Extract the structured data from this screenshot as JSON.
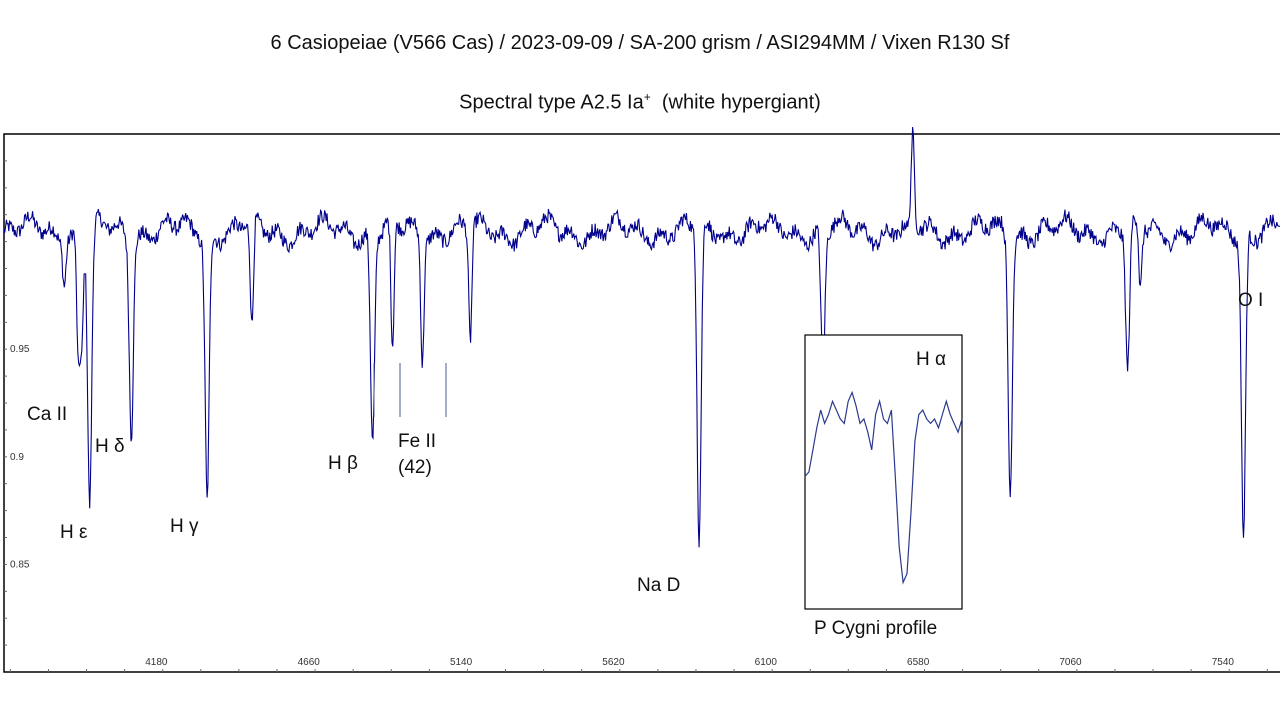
{
  "header": {
    "title": "6 Casiopeiae (V566 Cas) / 2023-09-09 / SA-200 grism / ASI294MM / Vixen R130 Sf",
    "subtitle_main": "Spectral type A2.5 Ia",
    "subtitle_sup": "+",
    "subtitle_tail": "  (white hypergiant)"
  },
  "colors": {
    "spectrum": "#00008b",
    "frame": "#000000",
    "ticks": "#666666"
  },
  "chart_data": {
    "type": "line",
    "xlabel": "",
    "ylabel": "",
    "xlim": [
      3700,
      7720
    ],
    "ylim": [
      0.8,
      1.05
    ],
    "x_ticks": [
      4180,
      4660,
      5140,
      5620,
      6100,
      6580,
      7060,
      7540
    ],
    "y_ticks": [
      0.85,
      0.9,
      0.95
    ],
    "y_tick_labels": [
      "0.85",
      "0.9",
      "0.95"
    ],
    "continuum": 1.005,
    "features": [
      {
        "x": 3890,
        "y": 0.986
      },
      {
        "x": 3934,
        "y": 0.946
      },
      {
        "x": 3945,
        "y": 0.955
      },
      {
        "x": 3970,
        "y": 0.877
      },
      {
        "x": 4101,
        "y": 0.915
      },
      {
        "x": 4340,
        "y": 0.881
      },
      {
        "x": 4481,
        "y": 0.955
      },
      {
        "x": 4861,
        "y": 0.908
      },
      {
        "x": 4924,
        "y": 0.945
      },
      {
        "x": 5018,
        "y": 0.947
      },
      {
        "x": 5169,
        "y": 0.953
      },
      {
        "x": 5890,
        "y": 0.858
      },
      {
        "x": 6280,
        "y": 0.94
      },
      {
        "x": 6548,
        "y": 1.0
      },
      {
        "x": 6563,
        "y": 1.045
      },
      {
        "x": 6870,
        "y": 0.886
      },
      {
        "x": 7240,
        "y": 0.938
      },
      {
        "x": 7280,
        "y": 0.975
      },
      {
        "x": 7605,
        "y": 0.864
      },
      {
        "x": 7774,
        "y": 0.984
      }
    ],
    "annotations": [
      {
        "text": "Ca II",
        "x": 3934
      },
      {
        "text": "H ε",
        "x": 3970
      },
      {
        "text": "H δ",
        "x": 4101
      },
      {
        "text": "H γ",
        "x": 4340
      },
      {
        "text": "H β",
        "x": 4861
      },
      {
        "text": "Fe II",
        "x": 5018
      },
      {
        "text": "(42)",
        "x": 5018
      },
      {
        "text": "Na D",
        "x": 5890
      },
      {
        "text": "O I",
        "x": 7774
      }
    ],
    "inset": {
      "title": "H α",
      "caption": "P Cygni profile",
      "profile": [
        0.9,
        0.905,
        0.93,
        0.955,
        0.975,
        0.96,
        0.97,
        0.985,
        0.975,
        0.965,
        0.96,
        0.985,
        0.995,
        0.98,
        0.96,
        0.965,
        0.95,
        0.93,
        0.97,
        0.985,
        0.965,
        0.96,
        0.975,
        0.9,
        0.82,
        0.78,
        0.79,
        0.86,
        0.94,
        0.97,
        0.975,
        0.965,
        0.96,
        0.965,
        0.955,
        0.97,
        0.985,
        0.97,
        0.96,
        0.95,
        0.965
      ]
    }
  }
}
